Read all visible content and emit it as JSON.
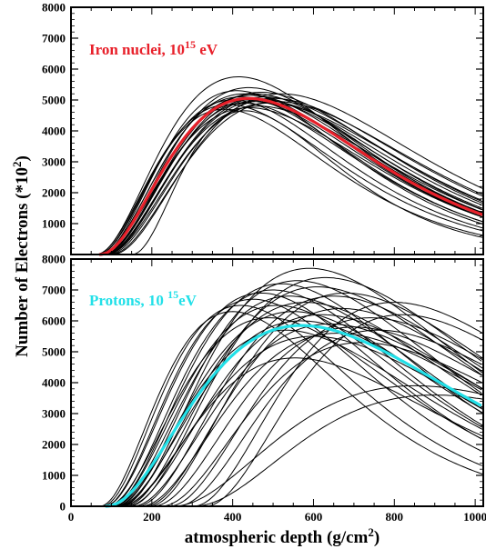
{
  "chart_data": [
    {
      "type": "line",
      "panel": "top",
      "annotation": {
        "text": "Iron nuclei,  10",
        "sup": "15",
        "suffix": " eV",
        "color": "#e8202a"
      },
      "xlim": [
        0,
        1020
      ],
      "ylim": [
        0,
        8000
      ],
      "yticks": [
        1000,
        2000,
        3000,
        4000,
        5000,
        6000,
        7000,
        8000
      ],
      "mean_color": "#e8202a",
      "mean": {
        "peak_x": 440,
        "peak_y": 5050,
        "x0": 70
      },
      "series": [
        {
          "peak_x": 380,
          "peak_y": 4700,
          "x0": 65
        },
        {
          "peak_x": 390,
          "peak_y": 4850,
          "x0": 60
        },
        {
          "peak_x": 400,
          "peak_y": 5000,
          "x0": 65
        },
        {
          "peak_x": 410,
          "peak_y": 5300,
          "x0": 70
        },
        {
          "peak_x": 415,
          "peak_y": 5750,
          "x0": 60
        },
        {
          "peak_x": 420,
          "peak_y": 5100,
          "x0": 70
        },
        {
          "peak_x": 425,
          "peak_y": 4900,
          "x0": 72
        },
        {
          "peak_x": 430,
          "peak_y": 5200,
          "x0": 68
        },
        {
          "peak_x": 435,
          "peak_y": 5000,
          "x0": 70
        },
        {
          "peak_x": 440,
          "peak_y": 5400,
          "x0": 75
        },
        {
          "peak_x": 440,
          "peak_y": 4750,
          "x0": 70
        },
        {
          "peak_x": 445,
          "peak_y": 5150,
          "x0": 72
        },
        {
          "peak_x": 450,
          "peak_y": 4950,
          "x0": 75
        },
        {
          "peak_x": 455,
          "peak_y": 5200,
          "x0": 78
        },
        {
          "peak_x": 460,
          "peak_y": 5050,
          "x0": 75
        },
        {
          "peak_x": 465,
          "peak_y": 4800,
          "x0": 80
        },
        {
          "peak_x": 470,
          "peak_y": 5250,
          "x0": 78
        },
        {
          "peak_x": 475,
          "peak_y": 5000,
          "x0": 85
        },
        {
          "peak_x": 480,
          "peak_y": 5100,
          "x0": 82
        },
        {
          "peak_x": 490,
          "peak_y": 4900,
          "x0": 85
        },
        {
          "peak_x": 500,
          "peak_y": 5050,
          "x0": 90
        },
        {
          "peak_x": 510,
          "peak_y": 4950,
          "x0": 95
        },
        {
          "peak_x": 520,
          "peak_y": 5200,
          "x0": 100
        },
        {
          "peak_x": 430,
          "peak_y": 4650,
          "x0": 150
        }
      ]
    },
    {
      "type": "line",
      "panel": "bottom",
      "annotation": {
        "text": "Protons, 10 ",
        "sup": "15",
        "suffix": "eV",
        "color": "#22e0e8"
      },
      "xlim": [
        0,
        1020
      ],
      "ylim": [
        0,
        8000
      ],
      "xticks": [
        0,
        200,
        400,
        600,
        800,
        1000
      ],
      "yticks": [
        0,
        1000,
        2000,
        3000,
        4000,
        5000,
        6000,
        7000,
        8000
      ],
      "mean_color": "#22e0e8",
      "mean": {
        "peak_x": 570,
        "peak_y": 5850,
        "x0": 85
      },
      "series": [
        {
          "peak_x": 400,
          "peak_y": 6300,
          "x0": 70
        },
        {
          "peak_x": 420,
          "peak_y": 6500,
          "x0": 75
        },
        {
          "peak_x": 450,
          "peak_y": 6700,
          "x0": 80
        },
        {
          "peak_x": 470,
          "peak_y": 6900,
          "x0": 80
        },
        {
          "peak_x": 490,
          "peak_y": 6100,
          "x0": 85
        },
        {
          "peak_x": 500,
          "peak_y": 7000,
          "x0": 90
        },
        {
          "peak_x": 510,
          "peak_y": 6500,
          "x0": 95
        },
        {
          "peak_x": 520,
          "peak_y": 7200,
          "x0": 95
        },
        {
          "peak_x": 530,
          "peak_y": 5700,
          "x0": 100
        },
        {
          "peak_x": 540,
          "peak_y": 6800,
          "x0": 100
        },
        {
          "peak_x": 550,
          "peak_y": 6300,
          "x0": 105
        },
        {
          "peak_x": 555,
          "peak_y": 4800,
          "x0": 120
        },
        {
          "peak_x": 560,
          "peak_y": 7300,
          "x0": 110
        },
        {
          "peak_x": 570,
          "peak_y": 6000,
          "x0": 110
        },
        {
          "peak_x": 580,
          "peak_y": 6600,
          "x0": 115
        },
        {
          "peak_x": 590,
          "peak_y": 7700,
          "x0": 120
        },
        {
          "peak_x": 600,
          "peak_y": 5500,
          "x0": 120
        },
        {
          "peak_x": 610,
          "peak_y": 7100,
          "x0": 130
        },
        {
          "peak_x": 620,
          "peak_y": 6200,
          "x0": 135
        },
        {
          "peak_x": 630,
          "peak_y": 7400,
          "x0": 140
        },
        {
          "peak_x": 640,
          "peak_y": 5900,
          "x0": 150
        },
        {
          "peak_x": 650,
          "peak_y": 6800,
          "x0": 160
        },
        {
          "peak_x": 660,
          "peak_y": 5600,
          "x0": 170
        },
        {
          "peak_x": 670,
          "peak_y": 6400,
          "x0": 180
        },
        {
          "peak_x": 680,
          "peak_y": 6900,
          "x0": 190
        },
        {
          "peak_x": 700,
          "peak_y": 5800,
          "x0": 200
        },
        {
          "peak_x": 720,
          "peak_y": 5300,
          "x0": 220
        },
        {
          "peak_x": 740,
          "peak_y": 6100,
          "x0": 240
        },
        {
          "peak_x": 760,
          "peak_y": 5700,
          "x0": 260
        },
        {
          "peak_x": 800,
          "peak_y": 6600,
          "x0": 300
        },
        {
          "peak_x": 820,
          "peak_y": 6200,
          "x0": 330
        },
        {
          "peak_x": 850,
          "peak_y": 3900,
          "x0": 250
        },
        {
          "peak_x": 900,
          "peak_y": 3600,
          "x0": 300
        }
      ]
    }
  ],
  "labels": {
    "ylabel": "Number of Electrons (*10",
    "ylabel_sup": "2",
    "ylabel_end": ")",
    "xlabel": "atmospheric depth  (g/cm",
    "xlabel_sup": "2",
    "xlabel_end": ")"
  }
}
